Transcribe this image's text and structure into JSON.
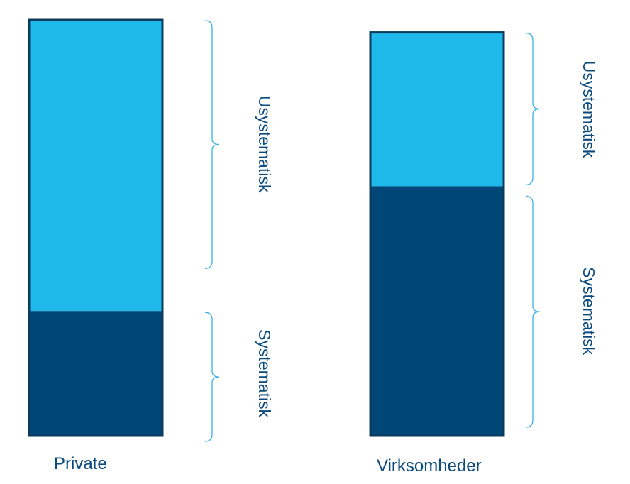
{
  "chart_data": {
    "type": "bar",
    "subtype": "stacked",
    "title": "",
    "xlabel": "",
    "ylabel": "",
    "categories": [
      "Private",
      "Virksomheder"
    ],
    "series": [
      {
        "name": "Systematisk",
        "values": [
          0.3,
          0.6
        ]
      },
      {
        "name": "Usystematisk",
        "values": [
          0.7,
          0.37
        ]
      }
    ],
    "ylim": [
      0,
      1
    ],
    "grid": false,
    "axes_visible": false,
    "segment_labels": {
      "systematic": "Systematisk",
      "unsystematic": "Usystematisk"
    },
    "colors": {
      "systematic": "#004778",
      "unsystematic": "#1eb8eb",
      "outline": "#0b3b5c",
      "brace": "#3ab0e8",
      "text": "#0b4a7d"
    }
  }
}
